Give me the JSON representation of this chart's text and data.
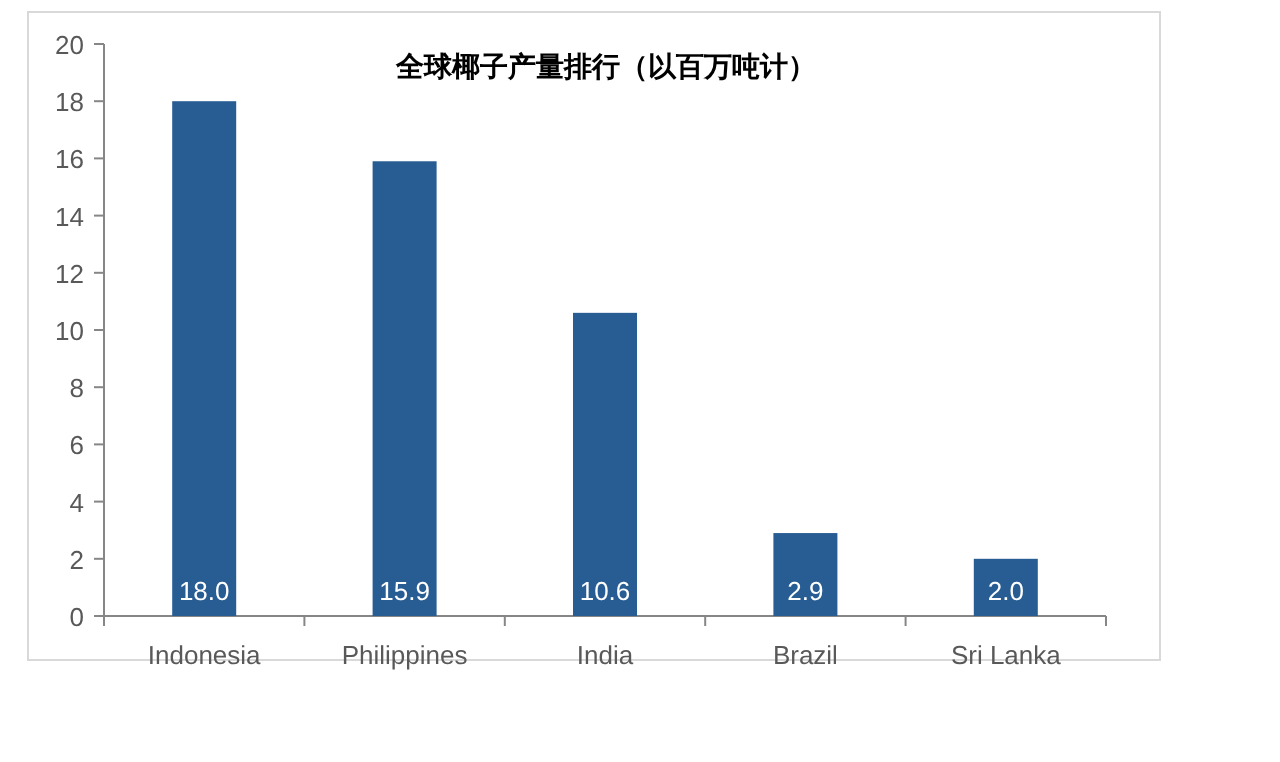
{
  "chart_data": {
    "type": "bar",
    "title": "全球椰子产量排行（以百万吨计）",
    "categories": [
      "Indonesia",
      "Philippines",
      "India",
      "Brazil",
      "Sri Lanka"
    ],
    "values": [
      18.0,
      15.9,
      10.6,
      2.9,
      2.0
    ],
    "value_labels": [
      "18.0",
      "15.9",
      "10.6",
      "2.9",
      "2.0"
    ],
    "color": "#285d94",
    "ylim": [
      0,
      20
    ],
    "yticks": [
      0,
      2,
      4,
      6,
      8,
      10,
      12,
      14,
      16,
      18,
      20
    ],
    "grid": false
  }
}
